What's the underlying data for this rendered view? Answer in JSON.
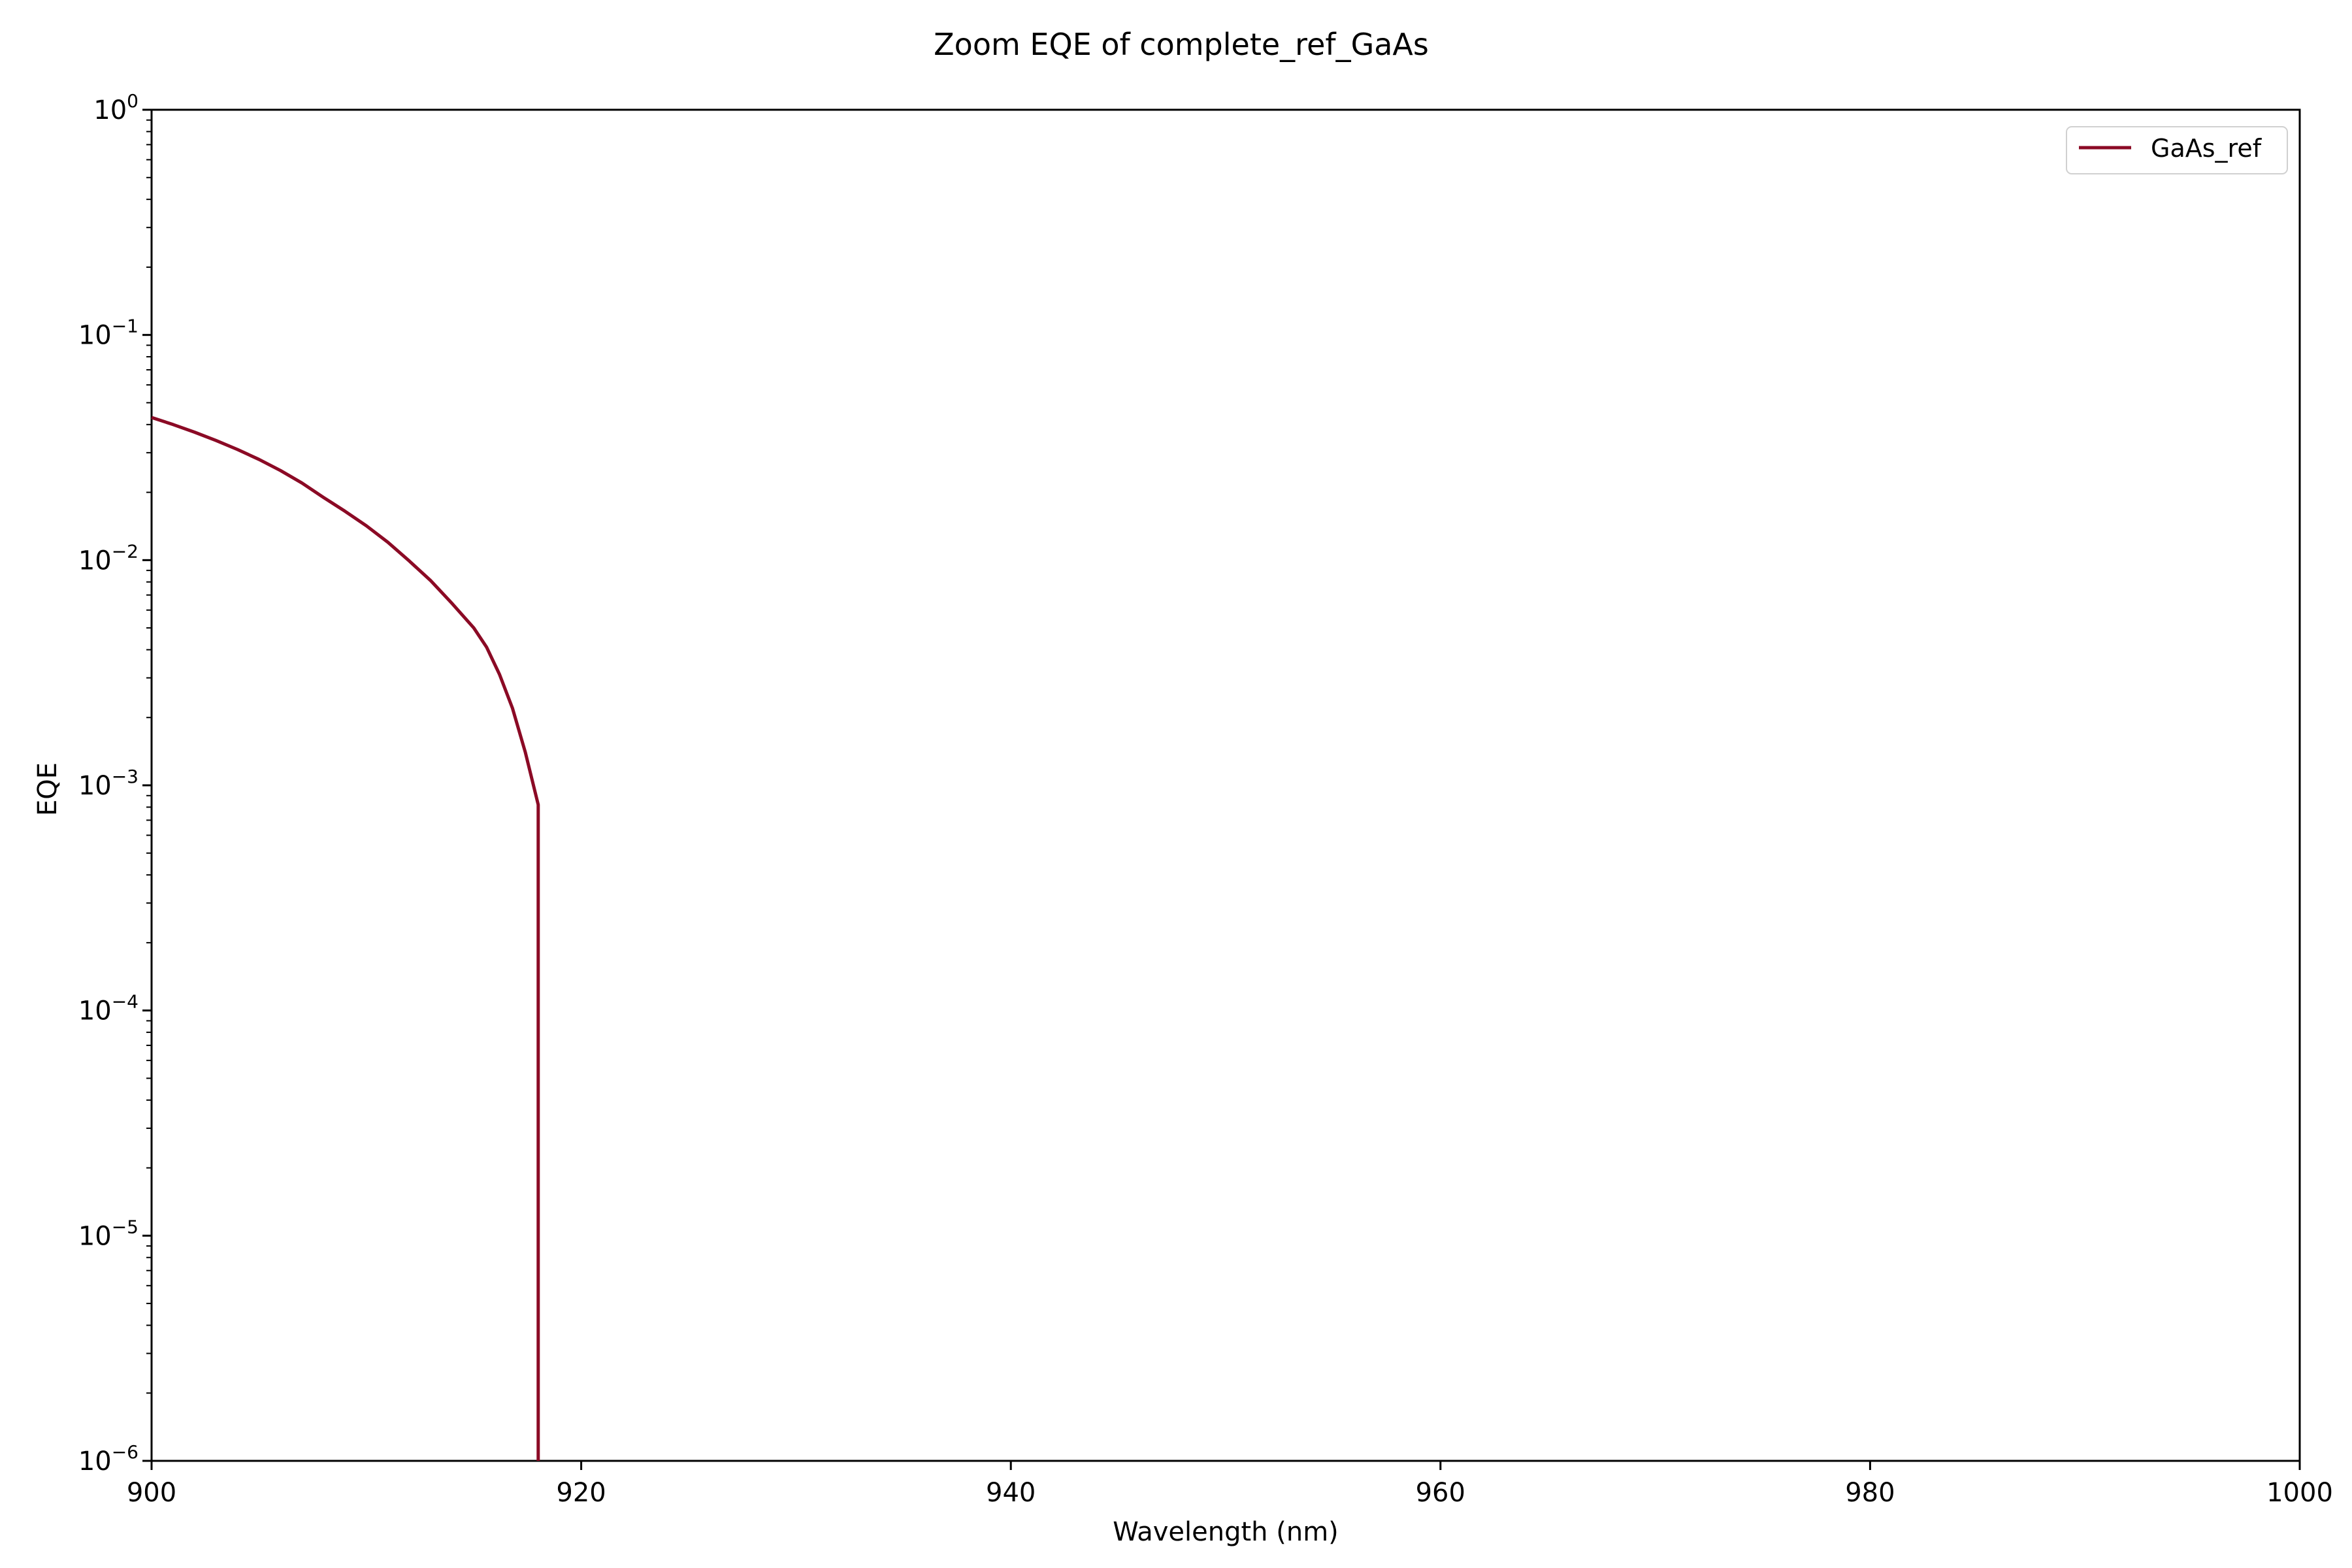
{
  "chart_data": {
    "type": "line",
    "title": "Zoom EQE of complete_ref_GaAs",
    "xlabel": "Wavelength (nm)",
    "ylabel": "EQE",
    "xlim": [
      900,
      1000
    ],
    "ylim": [
      1e-06,
      1
    ],
    "yscale": "log",
    "x_ticks": [
      "900",
      "920",
      "940",
      "960",
      "980",
      "1000"
    ],
    "y_ticks": [
      {
        "base": "10",
        "exp": "0"
      },
      {
        "base": "10",
        "exp": "−1"
      },
      {
        "base": "10",
        "exp": "−2"
      },
      {
        "base": "10",
        "exp": "−3"
      },
      {
        "base": "10",
        "exp": "−4"
      },
      {
        "base": "10",
        "exp": "−5"
      },
      {
        "base": "10",
        "exp": "−6"
      }
    ],
    "grid": false,
    "legend_position": "top-right",
    "series": [
      {
        "name": "GaAs_ref",
        "color": "#8b0a25",
        "x": [
          900,
          901,
          902,
          903,
          904,
          905,
          906,
          907,
          908,
          909,
          910,
          911,
          912,
          913,
          914,
          915,
          915.6,
          916.2,
          916.8,
          917.4,
          918.0,
          918.0
        ],
        "y": [
          0.043,
          0.04,
          0.037,
          0.034,
          0.031,
          0.028,
          0.025,
          0.022,
          0.019,
          0.0165,
          0.0142,
          0.012,
          0.0099,
          0.0081,
          0.0064,
          0.005,
          0.0041,
          0.0031,
          0.0022,
          0.0014,
          0.00082,
          1e-06
        ]
      }
    ]
  }
}
